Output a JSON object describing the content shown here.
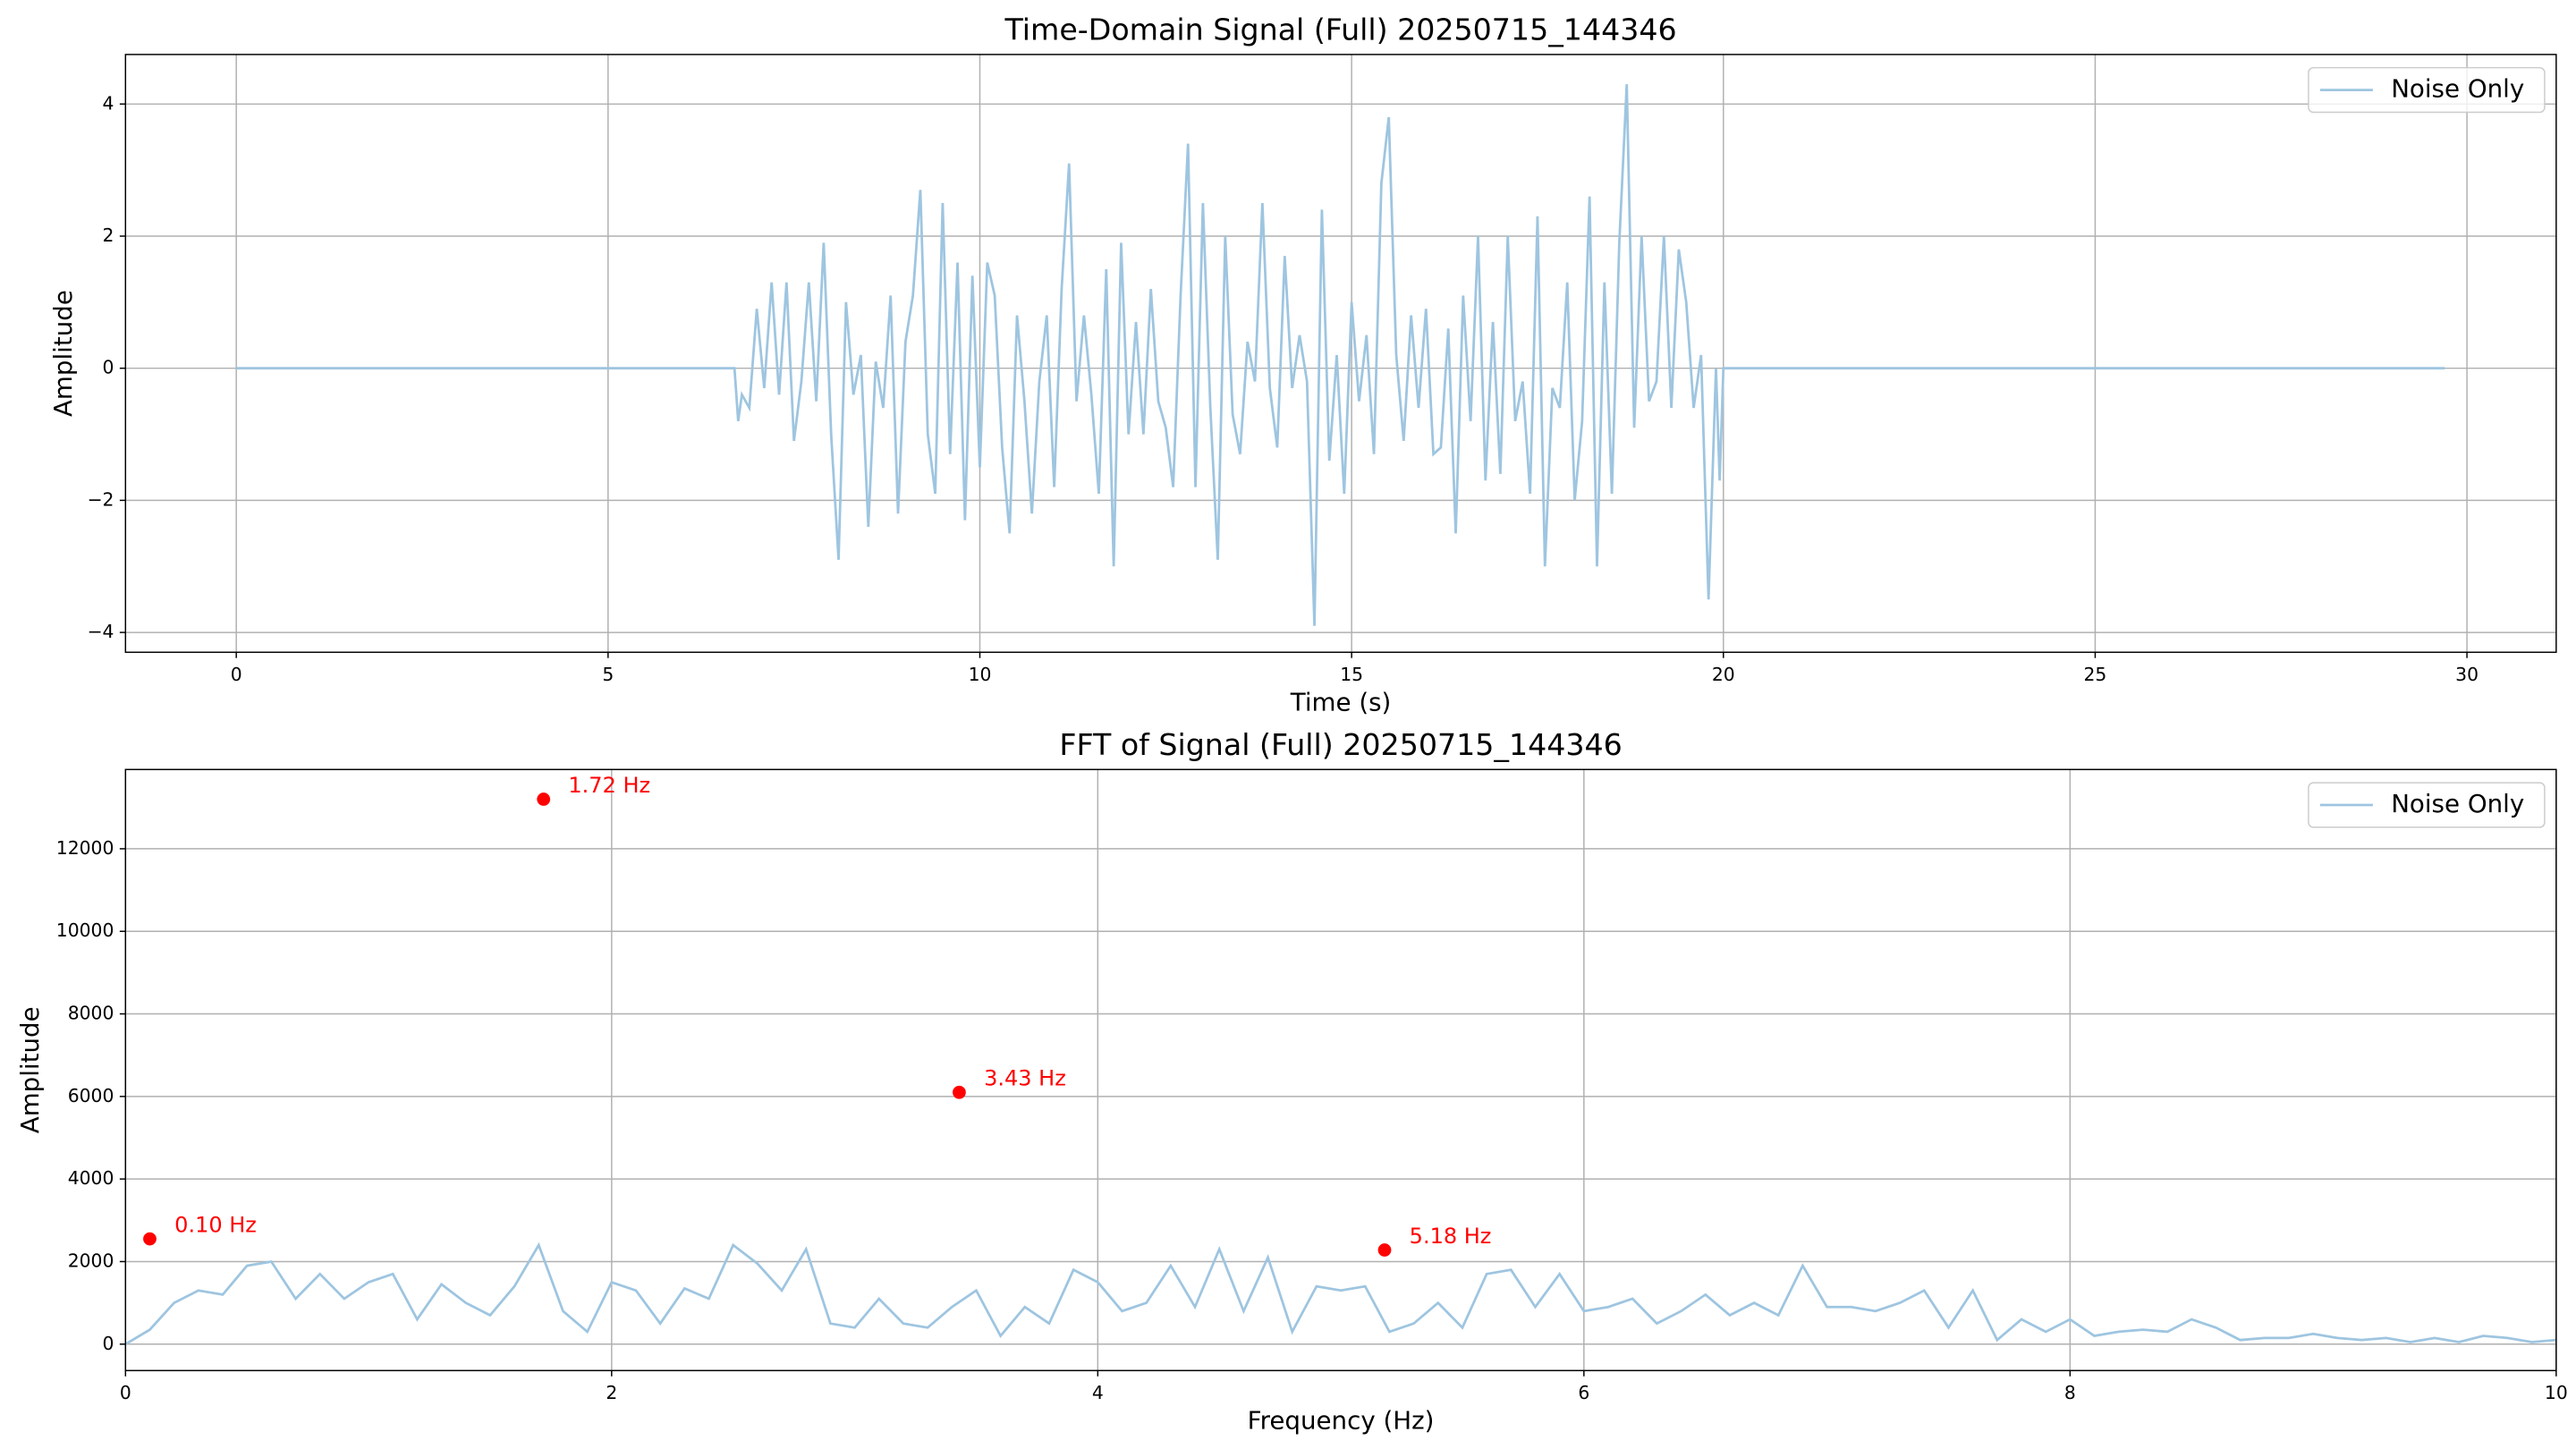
{
  "chart_data": [
    {
      "type": "line",
      "title": "Time-Domain Signal (Full) 20250715_144346",
      "x_label": "Time (s)",
      "y_label": "Amplitude",
      "x": [
        0,
        6.7,
        6.75,
        6.8,
        6.9,
        7.0,
        7.1,
        7.2,
        7.3,
        7.4,
        7.5,
        7.6,
        7.7,
        7.8,
        7.9,
        8.0,
        8.1,
        8.2,
        8.3,
        8.4,
        8.5,
        8.6,
        8.7,
        8.8,
        8.9,
        9.0,
        9.1,
        9.2,
        9.3,
        9.4,
        9.5,
        9.6,
        9.7,
        9.8,
        9.9,
        10.0,
        10.1,
        10.2,
        10.3,
        10.4,
        10.5,
        10.6,
        10.7,
        10.8,
        10.9,
        11.0,
        11.1,
        11.2,
        11.3,
        11.4,
        11.5,
        11.6,
        11.7,
        11.8,
        11.9,
        12.0,
        12.1,
        12.2,
        12.3,
        12.4,
        12.5,
        12.6,
        12.7,
        12.8,
        12.9,
        13.0,
        13.1,
        13.2,
        13.3,
        13.4,
        13.5,
        13.6,
        13.7,
        13.8,
        13.9,
        14.0,
        14.1,
        14.2,
        14.3,
        14.4,
        14.5,
        14.6,
        14.7,
        14.8,
        14.9,
        15.0,
        15.1,
        15.2,
        15.3,
        15.4,
        15.5,
        15.6,
        15.7,
        15.8,
        15.9,
        16.0,
        16.1,
        16.2,
        16.3,
        16.4,
        16.5,
        16.6,
        16.7,
        16.8,
        16.9,
        17.0,
        17.1,
        17.2,
        17.3,
        17.4,
        17.5,
        17.6,
        17.7,
        17.8,
        17.9,
        18.0,
        18.1,
        18.2,
        18.3,
        18.4,
        18.5,
        18.6,
        18.7,
        18.8,
        18.9,
        19.0,
        19.1,
        19.2,
        19.3,
        19.4,
        19.5,
        19.6,
        19.7,
        19.8,
        19.9,
        19.95,
        20.0,
        29.7
      ],
      "series": [
        {
          "name": "Noise Only",
          "color": "#9ec5e0",
          "values": [
            0,
            0,
            -0.8,
            -0.4,
            -0.6,
            0.9,
            -0.3,
            1.3,
            -0.4,
            1.3,
            -1.1,
            -0.2,
            1.3,
            -0.5,
            1.9,
            -1.0,
            -2.9,
            1.0,
            -0.4,
            0.2,
            -2.4,
            0.1,
            -0.6,
            1.1,
            -2.2,
            0.4,
            1.1,
            2.7,
            -1.0,
            -1.9,
            2.5,
            -1.3,
            1.6,
            -2.3,
            1.4,
            -1.5,
            1.6,
            1.1,
            -1.2,
            -2.5,
            0.8,
            -0.5,
            -2.2,
            -0.2,
            0.8,
            -1.8,
            1.2,
            3.1,
            -0.5,
            0.8,
            -0.4,
            -1.9,
            1.5,
            -3.0,
            1.9,
            -1.0,
            0.7,
            -1.0,
            1.2,
            -0.5,
            -0.9,
            -1.8,
            1.1,
            3.4,
            -1.8,
            2.5,
            -0.6,
            -2.9,
            2.0,
            -0.7,
            -1.3,
            0.4,
            -0.2,
            2.5,
            -0.3,
            -1.2,
            1.7,
            -0.3,
            0.5,
            -0.2,
            -3.9,
            2.4,
            -1.4,
            0.2,
            -1.9,
            1.0,
            -0.5,
            0.5,
            -1.3,
            2.8,
            3.8,
            0.2,
            -1.1,
            0.8,
            -0.6,
            0.9,
            -1.3,
            -1.2,
            0.6,
            -2.5,
            1.1,
            -0.8,
            2.0,
            -1.7,
            0.7,
            -1.6,
            2.0,
            -0.8,
            -0.2,
            -1.9,
            2.3,
            -3.0,
            -0.3,
            -0.6,
            1.3,
            -2.0,
            -0.8,
            2.6,
            -3.0,
            1.3,
            -1.9,
            1.9,
            4.3,
            -0.9,
            2.0,
            -0.5,
            -0.2,
            2.0,
            -0.6,
            1.8,
            1.0,
            -0.6,
            0.2,
            -3.5,
            0.0,
            -1.7,
            0,
            0
          ]
        }
      ],
      "xlim": [
        -1.49,
        31.2
      ],
      "ylim": [
        -4.3,
        4.75
      ],
      "xticks": [
        0,
        5,
        10,
        15,
        20,
        25,
        30
      ],
      "yticks": [
        {
          "value": -4,
          "label": "−4"
        },
        {
          "value": -2,
          "label": "−2"
        },
        0,
        2,
        4
      ],
      "grid": true,
      "legend": "upper right"
    },
    {
      "type": "line",
      "title": "FFT of Signal (Full) 20250715_144346",
      "x_label": "Frequency (Hz)",
      "y_label": "Amplitude",
      "x": [
        0,
        0.1,
        0.2,
        0.3,
        0.4,
        0.5,
        0.6,
        0.7,
        0.8,
        0.9,
        1.0,
        1.1,
        1.2,
        1.3,
        1.4,
        1.5,
        1.6,
        1.7,
        1.8,
        1.9,
        2.0,
        2.1,
        2.2,
        2.3,
        2.4,
        2.5,
        2.6,
        2.7,
        2.8,
        2.9,
        3.0,
        3.1,
        3.2,
        3.3,
        3.4,
        3.5,
        3.6,
        3.7,
        3.8,
        3.9,
        4.0,
        4.1,
        4.2,
        4.3,
        4.4,
        4.5,
        4.6,
        4.7,
        4.8,
        4.9,
        5.0,
        5.1,
        5.2,
        5.3,
        5.4,
        5.5,
        5.6,
        5.7,
        5.8,
        5.9,
        6.0,
        6.1,
        6.2,
        6.3,
        6.4,
        6.5,
        6.6,
        6.7,
        6.8,
        6.9,
        7.0,
        7.1,
        7.2,
        7.3,
        7.4,
        7.5,
        7.6,
        7.7,
        7.8,
        7.9,
        8.0,
        8.1,
        8.2,
        8.3,
        8.4,
        8.5,
        8.6,
        8.7,
        8.8,
        8.9,
        9.0,
        9.1,
        9.2,
        9.3,
        9.4,
        9.5,
        9.6,
        9.7,
        9.8,
        9.9,
        10.0
      ],
      "series": [
        {
          "name": "Noise Only",
          "color": "#9ec5e0",
          "values": [
            0,
            350,
            1000,
            1300,
            1200,
            1900,
            2000,
            1100,
            1700,
            1100,
            1500,
            1700,
            600,
            1450,
            1000,
            700,
            1400,
            2400,
            800,
            300,
            1500,
            1300,
            500,
            1350,
            1100,
            2400,
            1950,
            1300,
            2300,
            500,
            400,
            1100,
            500,
            400,
            900,
            1300,
            200,
            900,
            500,
            1800,
            1500,
            800,
            1000,
            1900,
            900,
            2300,
            800,
            2100,
            300,
            1400,
            1300,
            1400,
            300,
            500,
            1000,
            400,
            1700,
            1800,
            900,
            1700,
            800,
            900,
            1100,
            500,
            800,
            1200,
            700,
            1000,
            700,
            1900,
            900,
            900,
            800,
            1000,
            1300,
            400,
            1300,
            100,
            600,
            300,
            600,
            200,
            300,
            350,
            300,
            600,
            400,
            100,
            150,
            150,
            250,
            150,
            100,
            150,
            50,
            150,
            50,
            200,
            150,
            50,
            100
          ]
        }
      ],
      "peaks": {
        "color": "#ff0000",
        "x": [
          0.1,
          1.72,
          3.43,
          5.18
        ],
        "values": [
          2550,
          13200,
          6100,
          2280
        ],
        "value_labels": [
          "0.10 Hz",
          "1.72 Hz",
          "3.43 Hz",
          "5.18 Hz"
        ]
      },
      "xlim": [
        0,
        10
      ],
      "ylim": [
        -640,
        13920
      ],
      "xticks": [
        0,
        2,
        4,
        6,
        8,
        10
      ],
      "yticks": [
        0,
        2000,
        4000,
        6000,
        8000,
        10000,
        12000
      ],
      "grid": true,
      "legend": "upper right"
    }
  ]
}
